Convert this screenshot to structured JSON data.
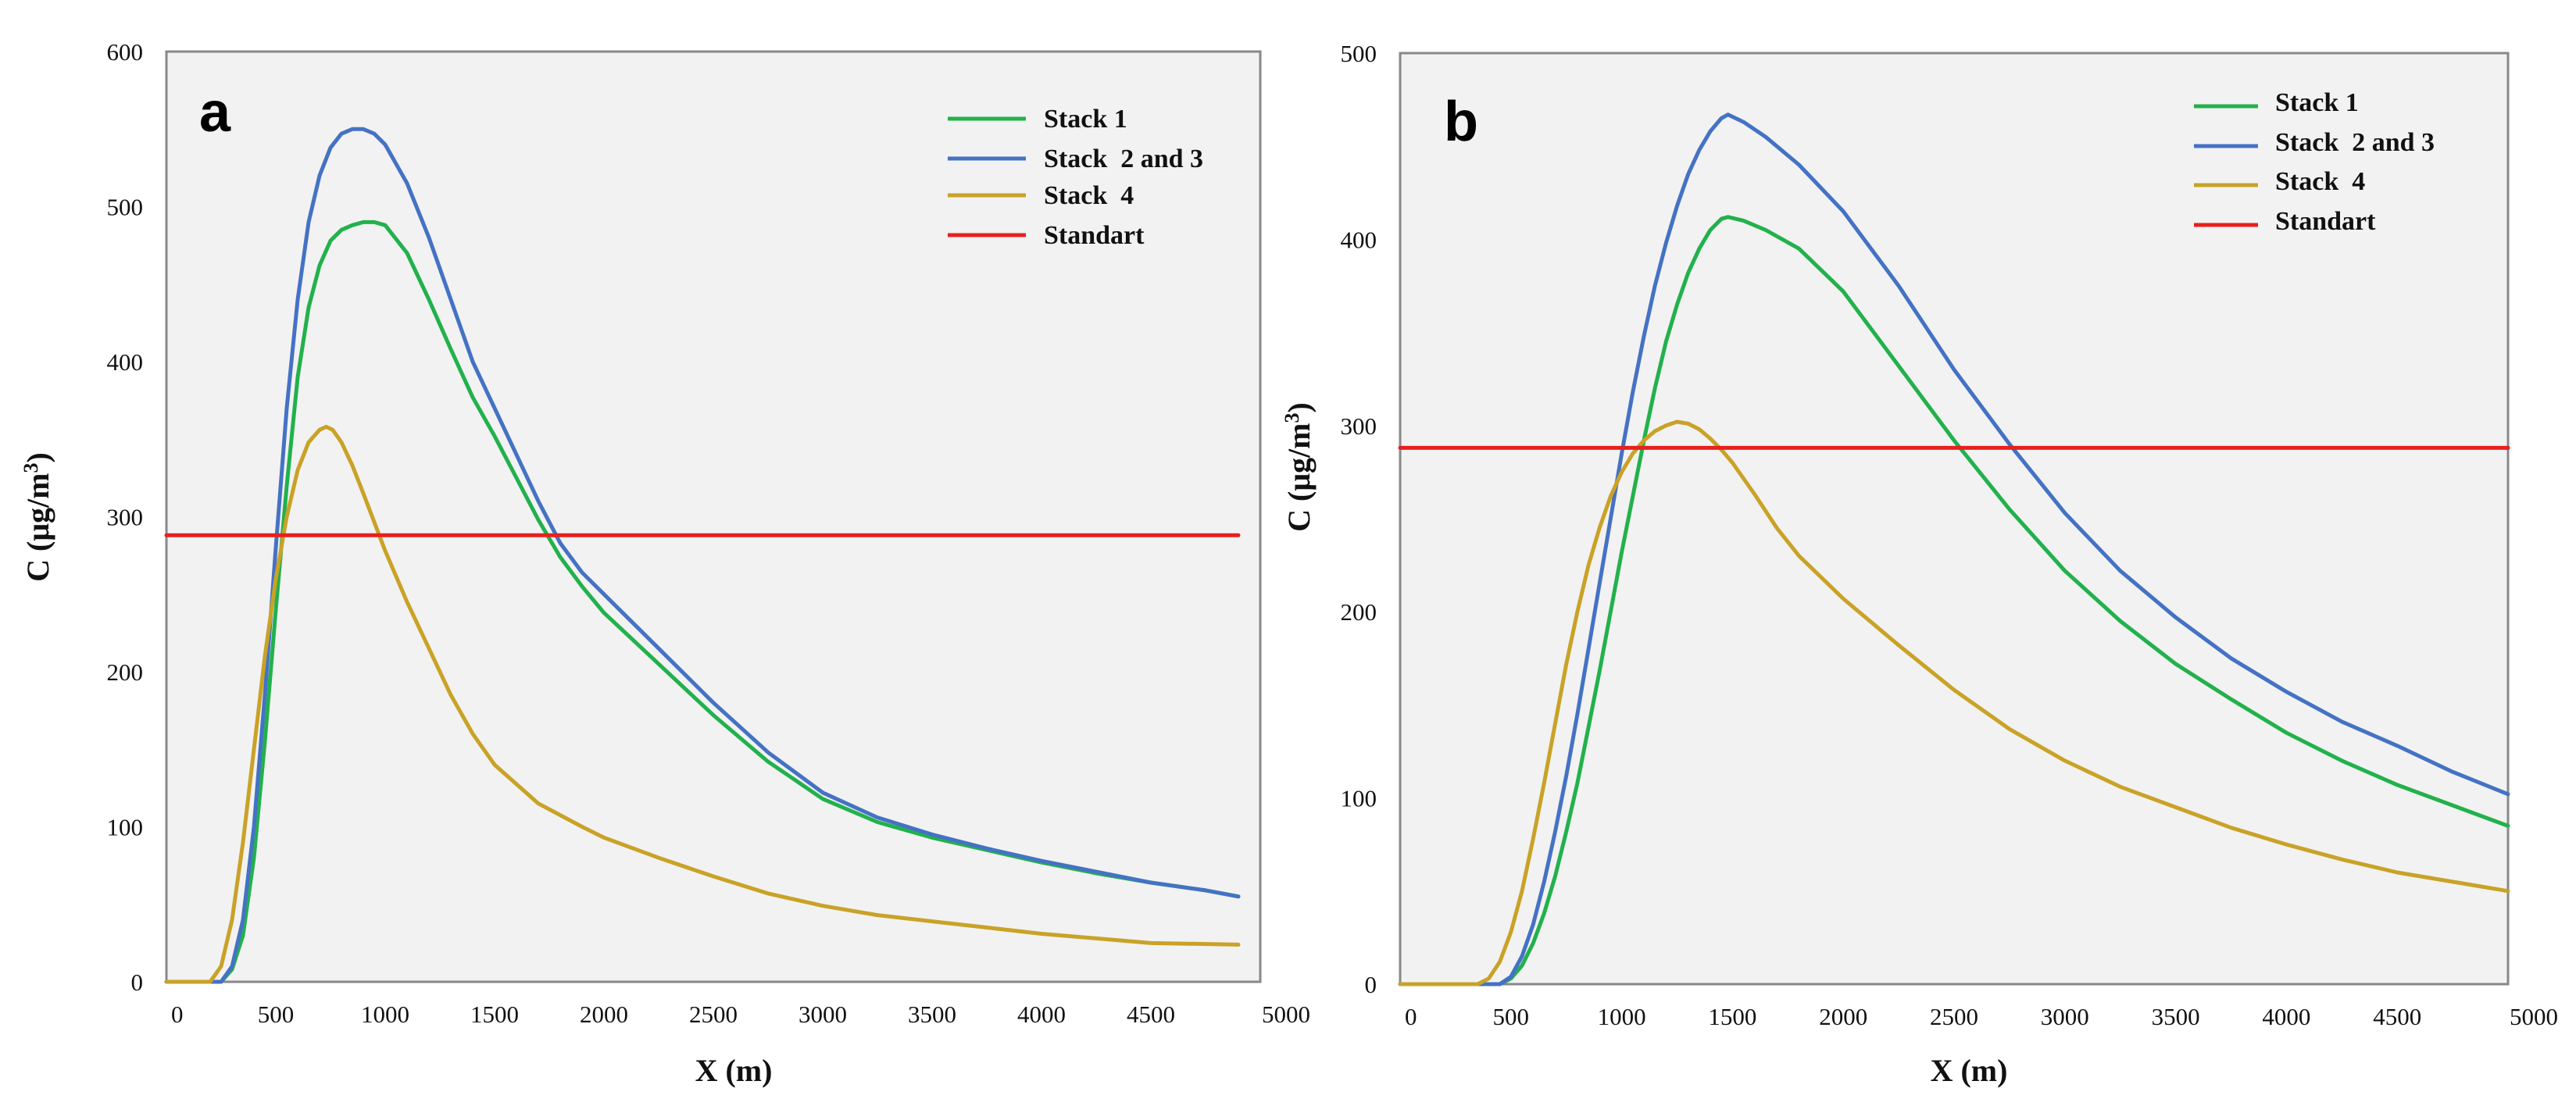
{
  "colors": {
    "stack1": "#22b14c",
    "stack23": "#4472c4",
    "stack4": "#c9a227",
    "standard": "#e8201e",
    "plot_bg": "#f2f2f2"
  },
  "chart_data": [
    {
      "type": "line",
      "panel": "a",
      "xlabel": "X (m)",
      "ylabel": "C (μg/m3)",
      "xlim": [
        0,
        5000
      ],
      "ylim": [
        0,
        600
      ],
      "xticks": [
        "0",
        "500",
        "1000",
        "1500",
        "2000",
        "2500",
        "3000",
        "3500",
        "4000",
        "4500",
        "5000"
      ],
      "yticks": [
        "0",
        "100",
        "200",
        "300",
        "400",
        "500",
        "600"
      ],
      "legend": [
        "Stack 1",
        "Stack  2 and 3",
        "Stack  4",
        "Standart"
      ],
      "series": [
        {
          "name": "Stack 1",
          "color_key": "stack1",
          "x": [
            0,
            250,
            300,
            350,
            400,
            450,
            500,
            550,
            600,
            650,
            700,
            750,
            800,
            850,
            900,
            950,
            1000,
            1100,
            1200,
            1300,
            1400,
            1500,
            1600,
            1700,
            1800,
            1900,
            2000,
            2250,
            2500,
            2750,
            3000,
            3250,
            3500,
            3750,
            4000,
            4250,
            4500,
            4750,
            4900
          ],
          "y": [
            0,
            0,
            8,
            30,
            80,
            155,
            240,
            320,
            390,
            435,
            462,
            478,
            485,
            488,
            490,
            490,
            488,
            470,
            440,
            408,
            377,
            352,
            325,
            298,
            274,
            255,
            238,
            205,
            172,
            142,
            118,
            103,
            93,
            85,
            77,
            70,
            64,
            59,
            55
          ]
        },
        {
          "name": "Stack  2 and 3",
          "color_key": "stack23",
          "x": [
            0,
            250,
            300,
            350,
            400,
            450,
            500,
            550,
            600,
            650,
            700,
            750,
            800,
            850,
            900,
            950,
            1000,
            1100,
            1200,
            1300,
            1400,
            1500,
            1600,
            1700,
            1800,
            1900,
            2000,
            2250,
            2500,
            2750,
            3000,
            3250,
            3500,
            3750,
            4000,
            4250,
            4500,
            4750,
            4900
          ],
          "y": [
            0,
            0,
            10,
            40,
            100,
            185,
            280,
            370,
            440,
            490,
            520,
            538,
            547,
            550,
            550,
            547,
            540,
            515,
            480,
            440,
            400,
            370,
            340,
            310,
            283,
            264,
            250,
            215,
            180,
            148,
            122,
            106,
            95,
            86,
            78,
            71,
            64,
            59,
            55
          ]
        },
        {
          "name": "Stack  4",
          "color_key": "stack4",
          "x": [
            0,
            200,
            250,
            300,
            350,
            400,
            450,
            500,
            550,
            600,
            650,
            700,
            730,
            760,
            800,
            850,
            900,
            1000,
            1100,
            1200,
            1300,
            1400,
            1500,
            1700,
            1900,
            2000,
            2250,
            2500,
            2750,
            3000,
            3250,
            3500,
            3750,
            4000,
            4250,
            4500,
            4900
          ],
          "y": [
            0,
            0,
            10,
            40,
            90,
            150,
            210,
            260,
            300,
            330,
            348,
            356,
            358,
            356,
            348,
            333,
            315,
            278,
            245,
            215,
            185,
            160,
            140,
            115,
            100,
            93,
            80,
            68,
            57,
            49,
            43,
            39,
            35,
            31,
            28,
            25,
            24
          ]
        },
        {
          "name": "Standart",
          "color_key": "standard",
          "x": [
            0,
            4900
          ],
          "y": [
            288,
            288
          ]
        }
      ]
    },
    {
      "type": "line",
      "panel": "b",
      "xlabel": "X (m)",
      "ylabel": "C (μg/m3)",
      "xlim": [
        0,
        5000
      ],
      "ylim": [
        0,
        500
      ],
      "xticks": [
        "0",
        "500",
        "1000",
        "1500",
        "2000",
        "2500",
        "3000",
        "3500",
        "4000",
        "4500",
        "5000"
      ],
      "yticks": [
        "0",
        "100",
        "200",
        "300",
        "400",
        "500"
      ],
      "legend": [
        "Stack 1",
        "Stack  2 and 3",
        "Stack  4",
        "Standart"
      ],
      "series": [
        {
          "name": "Stack 1",
          "color_key": "stack1",
          "x": [
            0,
            450,
            500,
            550,
            600,
            650,
            700,
            750,
            800,
            850,
            900,
            950,
            1000,
            1050,
            1100,
            1150,
            1200,
            1250,
            1300,
            1350,
            1400,
            1450,
            1480,
            1550,
            1650,
            1800,
            2000,
            2250,
            2500,
            2750,
            3000,
            3250,
            3500,
            3750,
            4000,
            4250,
            4500,
            4750,
            5000
          ],
          "y": [
            0,
            0,
            3,
            10,
            22,
            38,
            58,
            82,
            108,
            138,
            168,
            200,
            232,
            262,
            292,
            320,
            345,
            365,
            382,
            395,
            405,
            411,
            412,
            410,
            405,
            395,
            372,
            332,
            292,
            255,
            222,
            195,
            172,
            153,
            135,
            120,
            107,
            96,
            85
          ]
        },
        {
          "name": "Stack  2 and 3",
          "color_key": "stack23",
          "x": [
            0,
            450,
            500,
            550,
            600,
            650,
            700,
            750,
            800,
            850,
            900,
            950,
            1000,
            1050,
            1100,
            1150,
            1200,
            1250,
            1300,
            1350,
            1400,
            1450,
            1480,
            1550,
            1650,
            1800,
            2000,
            2250,
            2500,
            2750,
            3000,
            3250,
            3500,
            3750,
            4000,
            4250,
            4500,
            4750,
            5000
          ],
          "y": [
            0,
            0,
            4,
            15,
            32,
            55,
            82,
            112,
            145,
            180,
            215,
            250,
            285,
            318,
            348,
            375,
            398,
            418,
            435,
            448,
            458,
            465,
            467,
            463,
            455,
            440,
            415,
            375,
            330,
            290,
            253,
            222,
            197,
            175,
            157,
            141,
            128,
            114,
            102
          ]
        },
        {
          "name": "Stack  4",
          "color_key": "stack4",
          "x": [
            0,
            350,
            400,
            450,
            500,
            550,
            600,
            650,
            700,
            750,
            800,
            850,
            900,
            950,
            1000,
            1050,
            1100,
            1150,
            1200,
            1250,
            1300,
            1350,
            1400,
            1450,
            1500,
            1600,
            1700,
            1800,
            2000,
            2250,
            2500,
            2750,
            3000,
            3250,
            3500,
            3750,
            4000,
            4250,
            4500,
            4750,
            5000
          ],
          "y": [
            0,
            0,
            3,
            12,
            28,
            50,
            78,
            108,
            140,
            172,
            200,
            225,
            245,
            262,
            275,
            285,
            292,
            297,
            300,
            302,
            301,
            298,
            293,
            287,
            280,
            263,
            245,
            230,
            207,
            182,
            158,
            137,
            120,
            106,
            95,
            84,
            75,
            67,
            60,
            55,
            50
          ]
        },
        {
          "name": "Standart",
          "color_key": "standard",
          "x": [
            0,
            5000
          ],
          "y": [
            288,
            288
          ]
        }
      ]
    }
  ]
}
